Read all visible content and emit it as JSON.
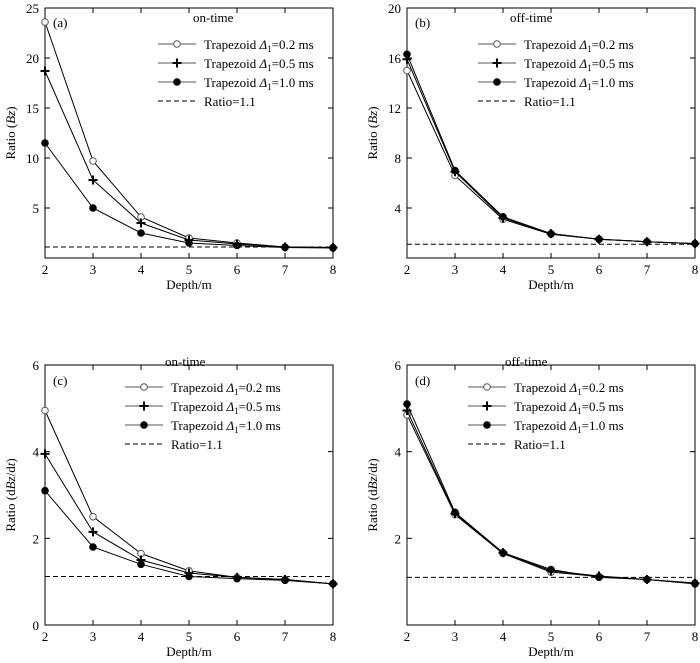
{
  "chart_data": [
    {
      "panel": "(a)",
      "subtitle": "on-time",
      "type": "line",
      "xlabel": "Depth/m",
      "ylabel_parts": [
        {
          "t": "Ratio ("
        },
        {
          "t": "Bz",
          "i": true
        },
        {
          "t": ")"
        }
      ],
      "x": [
        2,
        3,
        4,
        5,
        6,
        7,
        8
      ],
      "xlim": [
        2,
        8
      ],
      "xticks": [
        2,
        3,
        4,
        5,
        6,
        7,
        8
      ],
      "ylim": [
        0,
        25
      ],
      "yticks": [
        5,
        10,
        15,
        20,
        25
      ],
      "series": [
        {
          "name": "Trapezoid",
          "delta_value": "=0.2 ms",
          "marker": "open-circle",
          "values": [
            23.6,
            9.7,
            4.1,
            2.0,
            1.5,
            1.1,
            1.05
          ]
        },
        {
          "name": "Trapezoid",
          "delta_value": "=0.5 ms",
          "marker": "plus",
          "values": [
            18.7,
            7.8,
            3.5,
            1.8,
            1.4,
            1.1,
            1.05
          ]
        },
        {
          "name": "Trapezoid",
          "delta_value": "=1.0 ms",
          "marker": "filled-circle",
          "values": [
            11.5,
            5.0,
            2.5,
            1.5,
            1.25,
            1.05,
            1.0
          ]
        }
      ],
      "reference": {
        "label": "Ratio=1.1",
        "value": 1.1
      }
    },
    {
      "panel": "(b)",
      "subtitle": "off-time",
      "type": "line",
      "xlabel": "Depth/m",
      "ylabel_parts": [
        {
          "t": "Ratio ("
        },
        {
          "t": "Bz",
          "i": true
        },
        {
          "t": ")"
        }
      ],
      "x": [
        2,
        3,
        4,
        5,
        6,
        7,
        8
      ],
      "xlim": [
        2,
        8
      ],
      "xticks": [
        2,
        3,
        4,
        5,
        6,
        7,
        8
      ],
      "ylim": [
        0,
        20
      ],
      "yticks": [
        4,
        8,
        12,
        16,
        20
      ],
      "series": [
        {
          "name": "Trapezoid",
          "delta_value": "=0.2 ms",
          "marker": "open-circle",
          "values": [
            15.0,
            6.6,
            3.1,
            1.9,
            1.5,
            1.3,
            1.15
          ]
        },
        {
          "name": "Trapezoid",
          "delta_value": "=0.5 ms",
          "marker": "plus",
          "values": [
            15.9,
            6.9,
            3.2,
            1.95,
            1.5,
            1.3,
            1.15
          ]
        },
        {
          "name": "Trapezoid",
          "delta_value": "=1.0 ms",
          "marker": "filled-circle",
          "values": [
            16.3,
            7.0,
            3.3,
            1.95,
            1.5,
            1.3,
            1.15
          ]
        }
      ],
      "reference": {
        "label": "Ratio=1.1",
        "value": 1.1
      }
    },
    {
      "panel": "(c)",
      "subtitle": "on-time",
      "type": "line",
      "xlabel": "Depth/m",
      "ylabel_parts": [
        {
          "t": "Ratio (d"
        },
        {
          "t": "Bz",
          "i": true
        },
        {
          "t": "/d"
        },
        {
          "t": "t",
          "i": true
        },
        {
          "t": ")"
        }
      ],
      "x": [
        2,
        3,
        4,
        5,
        6,
        7,
        8
      ],
      "xlim": [
        2,
        8
      ],
      "xticks": [
        2,
        3,
        4,
        5,
        6,
        7,
        8
      ],
      "ylim": [
        0,
        6
      ],
      "yticks": [
        0,
        2,
        4,
        6
      ],
      "series": [
        {
          "name": "Trapezoid",
          "delta_value": "=0.2 ms",
          "marker": "open-circle",
          "values": [
            4.95,
            2.5,
            1.65,
            1.25,
            1.1,
            1.05,
            0.95
          ]
        },
        {
          "name": "Trapezoid",
          "delta_value": "=0.5 ms",
          "marker": "plus",
          "values": [
            3.95,
            2.15,
            1.5,
            1.2,
            1.1,
            1.05,
            0.95
          ]
        },
        {
          "name": "Trapezoid",
          "delta_value": "=1.0 ms",
          "marker": "filled-circle",
          "values": [
            3.1,
            1.8,
            1.4,
            1.12,
            1.07,
            1.03,
            0.95
          ]
        }
      ],
      "reference": {
        "label": "Ratio=1.1",
        "value": 1.12
      }
    },
    {
      "panel": "(d)",
      "subtitle": "off-time",
      "type": "line",
      "xlabel": "Depth/m",
      "ylabel_parts": [
        {
          "t": "Ratio (d"
        },
        {
          "t": "Bz",
          "i": true
        },
        {
          "t": "/d"
        },
        {
          "t": "t",
          "i": true
        },
        {
          "t": ")"
        }
      ],
      "x": [
        2,
        3,
        4,
        5,
        6,
        7,
        8
      ],
      "xlim": [
        2,
        8
      ],
      "xticks": [
        2,
        3,
        4,
        5,
        6,
        7,
        8
      ],
      "ylim": [
        0,
        6
      ],
      "yticks": [
        2,
        4,
        6
      ],
      "series": [
        {
          "name": "Trapezoid",
          "delta_value": "=0.2 ms",
          "marker": "open-circle",
          "values": [
            4.85,
            2.55,
            1.65,
            1.22,
            1.12,
            1.05,
            0.97
          ]
        },
        {
          "name": "Trapezoid",
          "delta_value": "=0.5 ms",
          "marker": "plus",
          "values": [
            4.95,
            2.57,
            1.67,
            1.25,
            1.13,
            1.05,
            0.96
          ]
        },
        {
          "name": "Trapezoid",
          "delta_value": "=1.0 ms",
          "marker": "filled-circle",
          "values": [
            5.1,
            2.6,
            1.67,
            1.28,
            1.1,
            1.05,
            0.95
          ]
        }
      ],
      "reference": {
        "label": "Ratio=1.1",
        "value": 1.1
      }
    }
  ],
  "legend_symbol": "Δ",
  "legend_subscript": "1"
}
